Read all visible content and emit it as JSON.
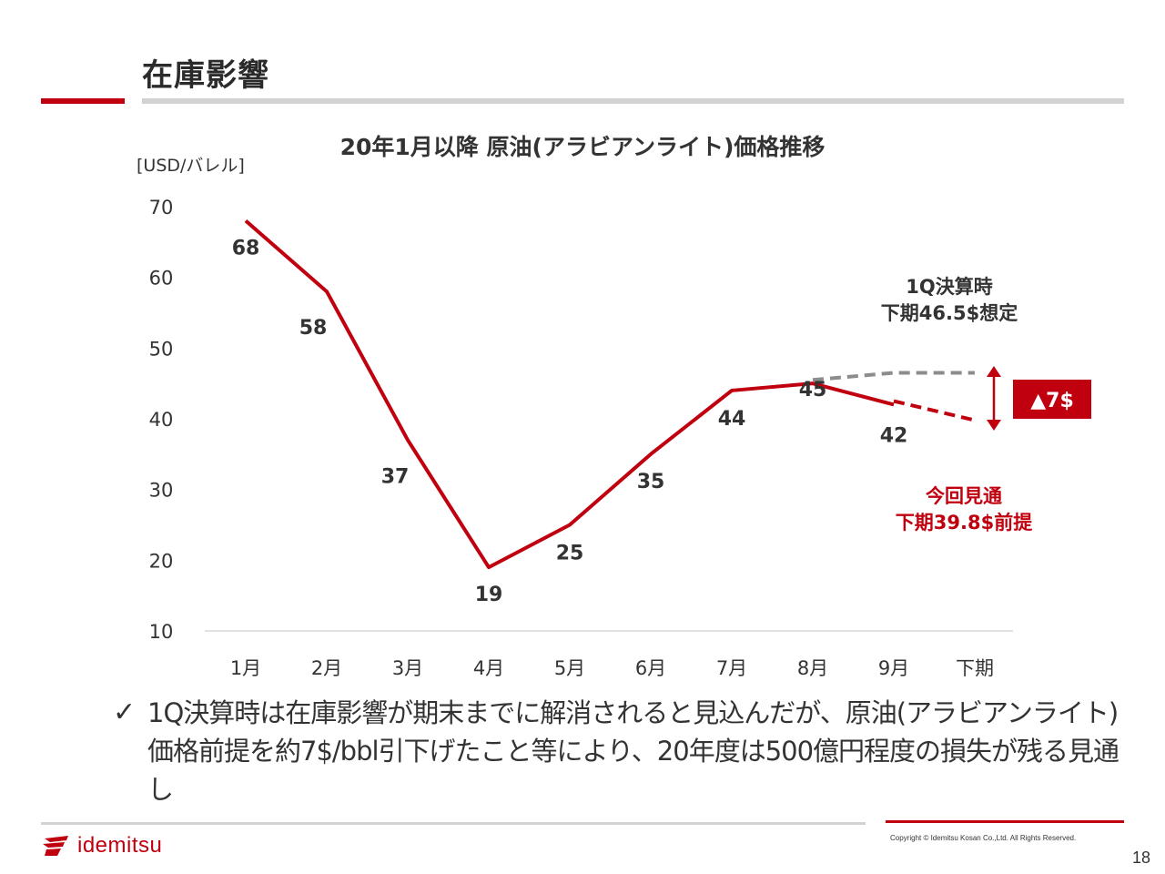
{
  "page": {
    "title": "在庫影響",
    "page_number": "18",
    "copyright": "Copyright © Idemitsu Kosan Co.,Ltd.  All Rights Reserved.",
    "logo_text": "idemitsu",
    "bullet_icon": "check-mark",
    "bullet_text": "1Q決算時は在庫影響が期末までに解消されると見込んだが、原油(アラビアンライト)価格前提を約7$/bbl引下げたこと等により、20年度は500億円程度の損失が残る見通し"
  },
  "colors": {
    "accent": "#c0000e",
    "dashed_grey": "#8c8c8c",
    "grid": "#d9d9d9"
  },
  "chart_data": {
    "type": "line",
    "title": "20年1月以降 原油(アラビアンライト)価格推移",
    "ylabel": "[USD/バレル]",
    "categories": [
      "1月",
      "2月",
      "3月",
      "4月",
      "5月",
      "6月",
      "7月",
      "8月",
      "9月",
      "下期"
    ],
    "ylim": [
      10,
      70
    ],
    "yticks": [
      10,
      20,
      30,
      40,
      50,
      60,
      70
    ],
    "series": [
      {
        "role": "actual",
        "style": "solid",
        "x": [
          "1月",
          "2月",
          "3月",
          "4月",
          "5月",
          "6月",
          "7月",
          "8月",
          "9月"
        ],
        "values": [
          68,
          58,
          37,
          19,
          25,
          35,
          44,
          45,
          42
        ],
        "labels": [
          "68",
          "58",
          "37",
          "19",
          "25",
          "35",
          "44",
          "45",
          "42"
        ]
      },
      {
        "role": "1q-assumption",
        "style": "dashed-grey",
        "x": [
          "8月",
          "9月",
          "下期"
        ],
        "values": [
          45.5,
          46.5,
          46.5
        ]
      },
      {
        "role": "current-outlook",
        "style": "dashed-red",
        "x": [
          "9月",
          "下期"
        ],
        "values": [
          42.5,
          39.8
        ]
      }
    ],
    "annotations": {
      "assumption_line1": "1Q決算時",
      "assumption_line2": "下期46.5$想定",
      "outlook_line1": "今回見通",
      "outlook_line2": "下期39.8$前提",
      "delta_badge": "▲7$"
    },
    "grid": false
  }
}
